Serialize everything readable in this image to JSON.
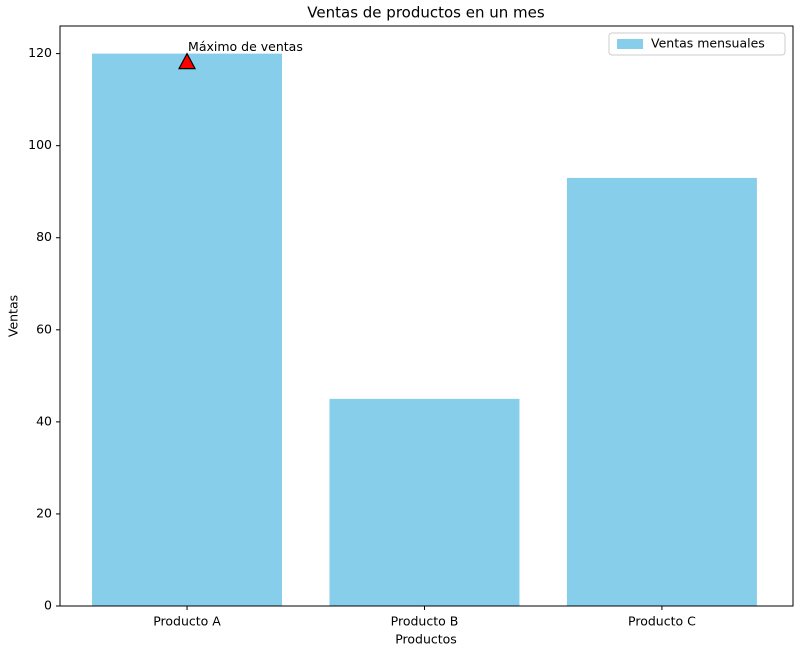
{
  "chart_data": {
    "type": "bar",
    "title": "Ventas de productos en un mes",
    "x_label": "Productos",
    "y_label": "Ventas",
    "categories": [
      "Producto A",
      "Producto B",
      "Producto C"
    ],
    "series": [
      {
        "name": "Ventas mensuales",
        "color": "#87ceeb",
        "values": [
          120,
          45,
          93
        ]
      }
    ],
    "ylim": [
      0,
      126
    ],
    "yticks": [
      0,
      20,
      40,
      60,
      80,
      100,
      120
    ],
    "legend": "upper right",
    "annotation": {
      "text": "Máximo de ventas",
      "category": 0,
      "value": 120,
      "color": "#ff0000"
    }
  }
}
